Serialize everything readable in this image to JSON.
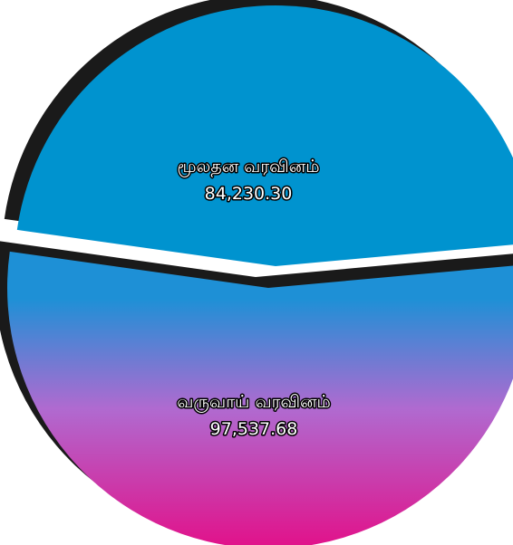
{
  "chart_data": {
    "type": "pie",
    "style": "3d-exploded",
    "slices": [
      {
        "label": "மூலதன வரவினம்",
        "value": 84230.3,
        "value_text": "84,230.30",
        "color": "#0093cf"
      },
      {
        "label": "வருவாய் வரவினம்",
        "value": 97537.68,
        "value_text": "97,537.68",
        "color_top": "#1e90d6",
        "color_mid": "#b06ad0",
        "color_bottom": "#e0148c"
      }
    ],
    "shadow_color": "#1a1a1a",
    "legend": "none"
  }
}
